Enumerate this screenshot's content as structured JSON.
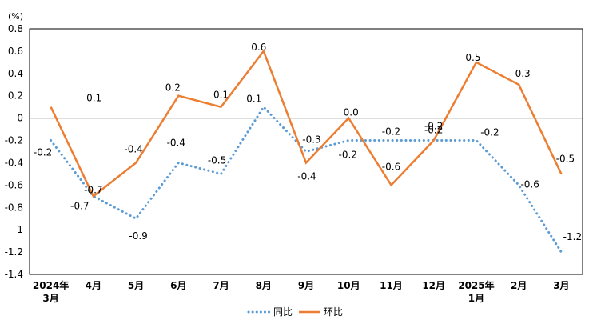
{
  "chart_data": {
    "type": "line",
    "unit_label": "(%)",
    "categories": [
      [
        "2024年",
        "3月"
      ],
      [
        "4月"
      ],
      [
        "5月"
      ],
      [
        "6月"
      ],
      [
        "7月"
      ],
      [
        "8月"
      ],
      [
        "9月"
      ],
      [
        "10月"
      ],
      [
        "11月"
      ],
      [
        "12月"
      ],
      [
        "2025年",
        "1月"
      ],
      [
        "2月"
      ],
      [
        "3月"
      ]
    ],
    "ylim": [
      -1.4,
      0.8
    ],
    "yticks": [
      0.8,
      0.6,
      0.4,
      0.2,
      0,
      -0.2,
      -0.4,
      -0.6,
      -0.8,
      -1,
      -1.2,
      -1.4
    ],
    "ytick_labels": [
      "0.8",
      "0.6",
      "0.4",
      "0.2",
      "0",
      "-0.2",
      "-0.4",
      "-0.6",
      "-0.8",
      "-1",
      "-1.2",
      "-1.4"
    ],
    "series": [
      {
        "name": "同比",
        "color": "#5B9BD5",
        "style": "dotted",
        "values": [
          -0.2,
          -0.7,
          -0.9,
          -0.4,
          -0.5,
          0.1,
          -0.3,
          -0.2,
          -0.2,
          -0.2,
          -0.2,
          -0.6,
          -1.2
        ],
        "labels": [
          "-0.2",
          "-0.7",
          "-0.9",
          "-0.4",
          "-0.5",
          "0.1",
          "-0.3",
          "-0.2",
          "-0.2",
          "-0.2",
          "-0.2",
          "-0.6",
          "-1.2"
        ]
      },
      {
        "name": "环比",
        "color": "#ED7D31",
        "style": "solid",
        "values": [
          0.1,
          -0.7,
          -0.4,
          0.2,
          0.1,
          0.6,
          -0.4,
          0.0,
          -0.6,
          -0.2,
          0.5,
          0.3,
          -0.5
        ],
        "labels": [
          "0.1",
          "-0.7",
          "-0.4",
          "0.2",
          "0.1",
          "0.6",
          "-0.4",
          "0.0",
          "-0.6",
          "-0.2",
          "0.5",
          "0.3",
          "-0.5"
        ]
      }
    ],
    "grid": false,
    "legend_position": "bottom-center"
  }
}
